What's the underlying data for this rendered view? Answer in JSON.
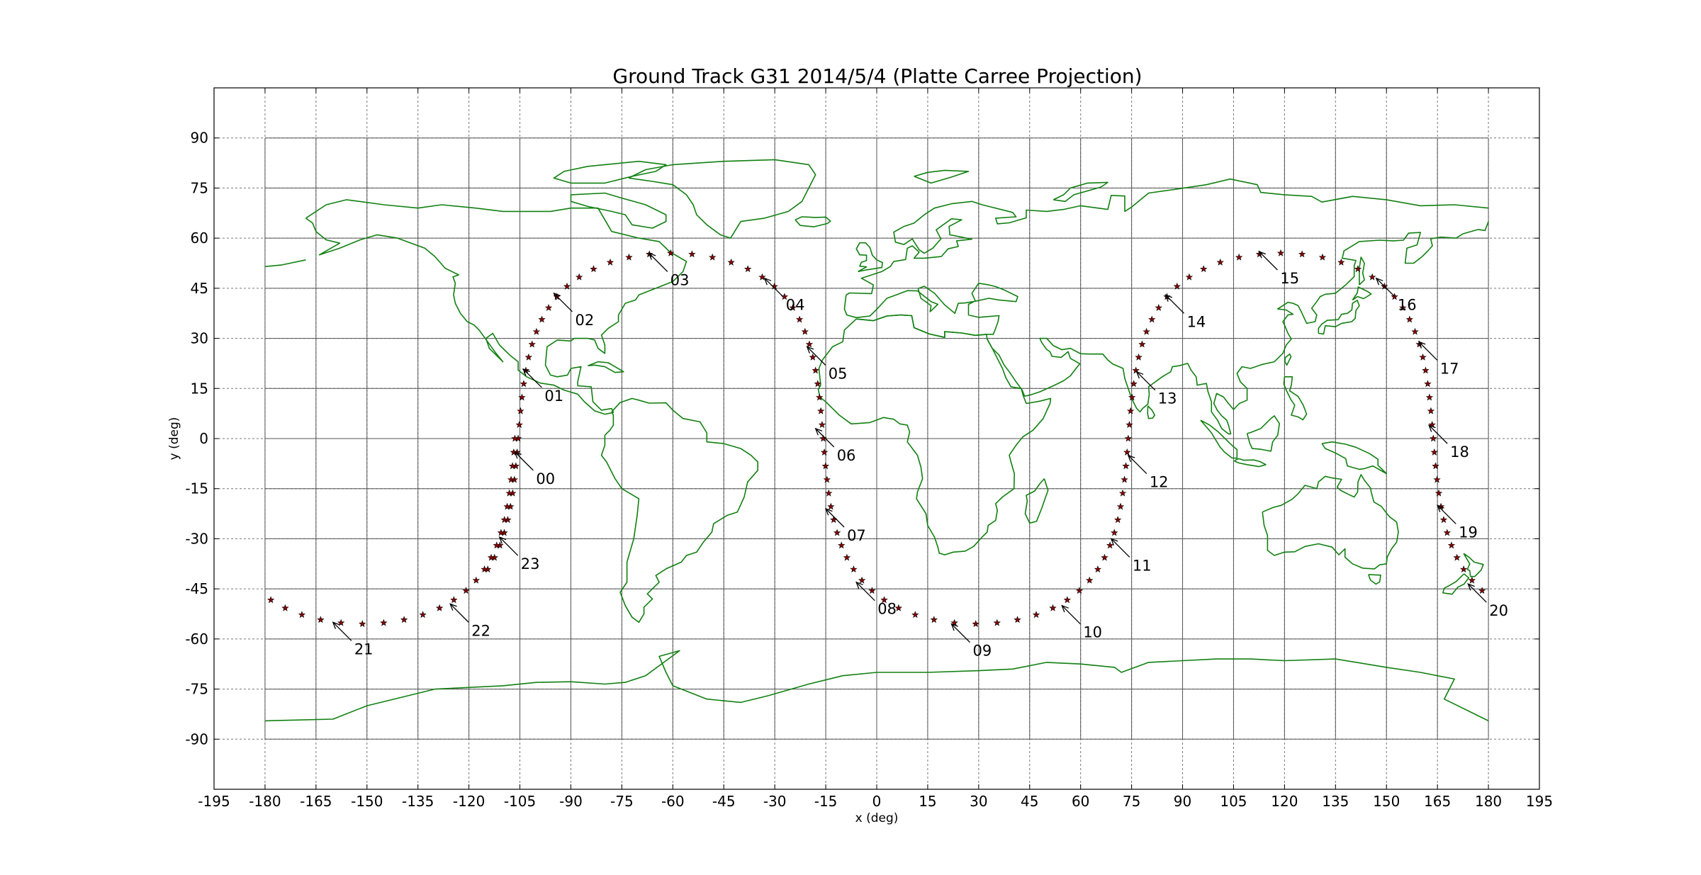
{
  "chart_data": {
    "type": "scatter",
    "title": "Ground Track G31 2014/5/4 (Platte Carree Projection)",
    "xlabel": "x (deg)",
    "ylabel": "y (deg)",
    "xlim": [
      -195,
      195
    ],
    "ylim": [
      -105,
      105
    ],
    "xticks": [
      -195,
      -180,
      -165,
      -150,
      -135,
      -120,
      -105,
      -90,
      -75,
      -60,
      -45,
      -30,
      -15,
      0,
      15,
      30,
      45,
      60,
      75,
      90,
      105,
      120,
      135,
      150,
      165,
      180,
      195
    ],
    "yticks": [
      90,
      75,
      60,
      45,
      30,
      15,
      0,
      -15,
      -30,
      -45,
      -60,
      -75,
      -90
    ],
    "grid": true,
    "graticule_step": 15,
    "marker": "star",
    "colors": {
      "track": "#8b0000",
      "coastline": "#118011",
      "grid": "#777777"
    },
    "hour_labels": [
      {
        "label": "00",
        "x": -106.5,
        "y": -4.0
      },
      {
        "label": "01",
        "x": -104.0,
        "y": 20.8
      },
      {
        "label": "02",
        "x": -95.0,
        "y": 43.5
      },
      {
        "label": "03",
        "x": -67.0,
        "y": 55.5
      },
      {
        "label": "04",
        "x": -33.0,
        "y": 48.0
      },
      {
        "label": "05",
        "x": -20.5,
        "y": 27.5
      },
      {
        "label": "06",
        "x": -18.0,
        "y": 3.0
      },
      {
        "label": "07",
        "x": -15.0,
        "y": -21.0
      },
      {
        "label": "08",
        "x": -6.0,
        "y": -43.0
      },
      {
        "label": "09",
        "x": 22.0,
        "y": -55.5
      },
      {
        "label": "10",
        "x": 54.5,
        "y": -50.0
      },
      {
        "label": "11",
        "x": 69.0,
        "y": -30.0
      },
      {
        "label": "12",
        "x": 74.0,
        "y": -5.0
      },
      {
        "label": "13",
        "x": 76.5,
        "y": 20.0
      },
      {
        "label": "14",
        "x": 85.0,
        "y": 43.0
      },
      {
        "label": "15",
        "x": 112.5,
        "y": 56.0
      },
      {
        "label": "16",
        "x": 147.0,
        "y": 48.0
      },
      {
        "label": "17",
        "x": 159.5,
        "y": 29.0
      },
      {
        "label": "18",
        "x": 162.5,
        "y": 4.0
      },
      {
        "label": "19",
        "x": 165.0,
        "y": -20.0
      },
      {
        "label": "20",
        "x": 174.0,
        "y": -43.5
      },
      {
        "label": "21",
        "x": -160.0,
        "y": -55.0
      },
      {
        "label": "22",
        "x": -125.5,
        "y": -49.5
      },
      {
        "label": "23",
        "x": -111.0,
        "y": -29.5
      }
    ]
  }
}
